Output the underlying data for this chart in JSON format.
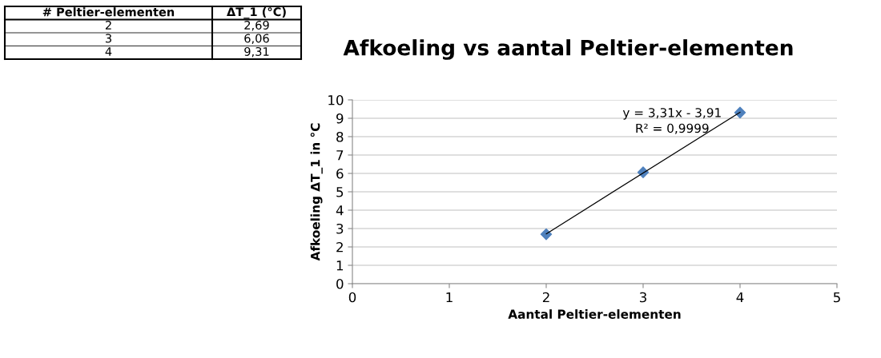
{
  "chart_data": [
    {
      "type": "other",
      "annotations": [
        "# Peltier-elementen",
        "ΔT_1 (°C)",
        "2",
        "2,69",
        "3",
        "6,06",
        "4",
        "9,31"
      ]
    },
    {
      "type": "scatter",
      "title": "Afkoeling vs aantal Peltier-elementen",
      "xlabel": "Aantal Peltier-elementen",
      "ylabel": "Afkoeling ΔT_1 in °C",
      "xlim": [
        0,
        5
      ],
      "xticks": [
        0,
        1,
        2,
        3,
        4,
        5
      ],
      "ylim": [
        0,
        10
      ],
      "yticks": [
        0,
        1,
        2,
        3,
        4,
        5,
        6,
        7,
        8,
        9,
        10
      ],
      "grid": "y",
      "legend": false,
      "series": [
        {
          "color": "#4f81bd",
          "marker": "diamond",
          "x": [
            2,
            3,
            4
          ],
          "values": [
            2.69,
            6.06,
            9.31
          ]
        },
        {
          "type": "line",
          "color": "#000000",
          "x": [
            2,
            4
          ],
          "values": [
            2.71,
            9.33
          ],
          "line_style": "solid"
        }
      ],
      "annotations": [
        "y = 3,31x - 3,91",
        "R² = 0,9999"
      ]
    }
  ]
}
